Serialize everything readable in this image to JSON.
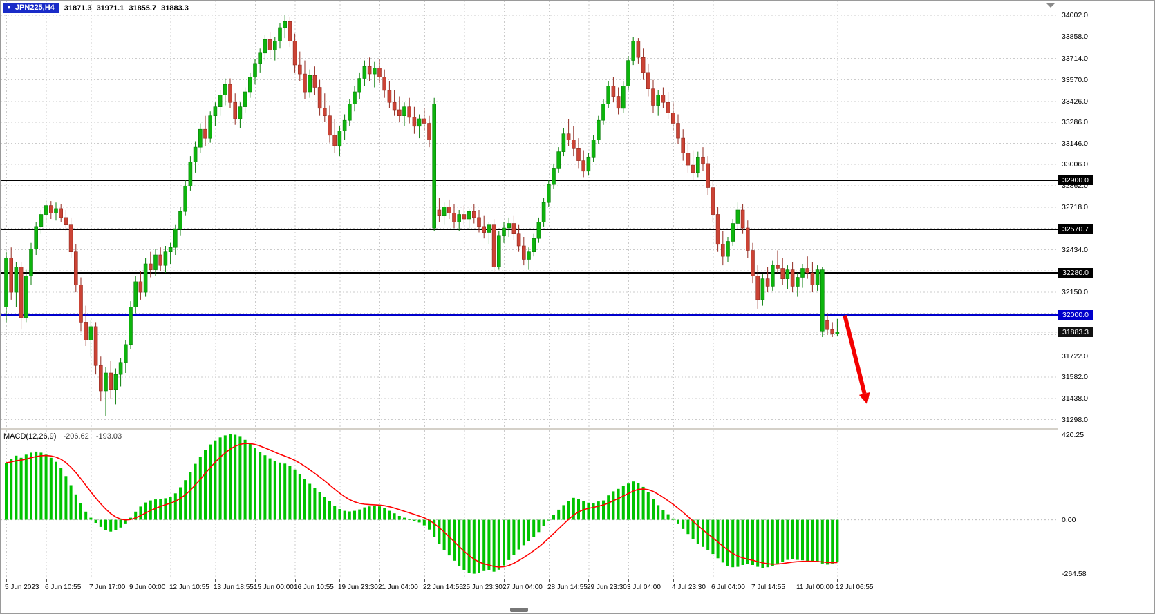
{
  "header": {
    "symbol": "JPN225,H4",
    "open": "31871.3",
    "high": "31971.1",
    "low": "31855.7",
    "close": "31883.3",
    "badge_bg": "#1a2cc8"
  },
  "chart_data": {
    "type": "candlestick",
    "symbol": "JPN225",
    "timeframe": "H4",
    "price_range": [
      31245,
      34100
    ],
    "colors": {
      "bull": "#0db40d",
      "bull_edge": "#087d08",
      "bear": "#cb4335",
      "bear_edge": "#922b21",
      "grid": "#cbcbcb",
      "background": "#ffffff",
      "arrow": "#f30000"
    },
    "bars_ohlc": [
      [
        32050,
        32420,
        31950,
        32380
      ],
      [
        32380,
        32450,
        32100,
        32150
      ],
      [
        32150,
        32350,
        32050,
        32320
      ],
      [
        32320,
        32350,
        31900,
        31980
      ],
      [
        31980,
        32300,
        31950,
        32260
      ],
      [
        32260,
        32480,
        32200,
        32440
      ],
      [
        32440,
        32620,
        32400,
        32590
      ],
      [
        32590,
        32700,
        32540,
        32670
      ],
      [
        32670,
        32770,
        32620,
        32730
      ],
      [
        32730,
        32760,
        32640,
        32680
      ],
      [
        32680,
        32750,
        32630,
        32710
      ],
      [
        32710,
        32740,
        32620,
        32650
      ],
      [
        32650,
        32700,
        32560,
        32600
      ],
      [
        32600,
        32650,
        32380,
        32420
      ],
      [
        32420,
        32470,
        32150,
        32200
      ],
      [
        32200,
        32250,
        31890,
        31950
      ],
      [
        31950,
        32060,
        31790,
        31830
      ],
      [
        31830,
        31960,
        31720,
        31920
      ],
      [
        31920,
        31950,
        31600,
        31660
      ],
      [
        31660,
        31720,
        31420,
        31490
      ],
      [
        31490,
        31650,
        31320,
        31610
      ],
      [
        31610,
        31690,
        31440,
        31500
      ],
      [
        31500,
        31640,
        31400,
        31600
      ],
      [
        31600,
        31710,
        31520,
        31680
      ],
      [
        31680,
        31830,
        31610,
        31800
      ],
      [
        31800,
        32090,
        31770,
        32050
      ],
      [
        32050,
        32260,
        32010,
        32220
      ],
      [
        32220,
        32290,
        32100,
        32150
      ],
      [
        32150,
        32380,
        32120,
        32340
      ],
      [
        32340,
        32420,
        32250,
        32300
      ],
      [
        32300,
        32440,
        32260,
        32400
      ],
      [
        32400,
        32450,
        32290,
        32330
      ],
      [
        32330,
        32460,
        32280,
        32420
      ],
      [
        32420,
        32480,
        32340,
        32450
      ],
      [
        32450,
        32600,
        32400,
        32570
      ],
      [
        32570,
        32720,
        32530,
        32690
      ],
      [
        32690,
        32900,
        32660,
        32860
      ],
      [
        32860,
        33060,
        32830,
        33020
      ],
      [
        33020,
        33160,
        32950,
        33120
      ],
      [
        33120,
        33280,
        33080,
        33240
      ],
      [
        33240,
        33330,
        33130,
        33180
      ],
      [
        33180,
        33360,
        33150,
        33330
      ],
      [
        33330,
        33420,
        33260,
        33390
      ],
      [
        33390,
        33500,
        33330,
        33470
      ],
      [
        33470,
        33580,
        33400,
        33540
      ],
      [
        33540,
        33580,
        33380,
        33420
      ],
      [
        33420,
        33480,
        33270,
        33310
      ],
      [
        33310,
        33420,
        33250,
        33390
      ],
      [
        33390,
        33520,
        33350,
        33490
      ],
      [
        33490,
        33620,
        33450,
        33590
      ],
      [
        33590,
        33710,
        33540,
        33680
      ],
      [
        33680,
        33780,
        33620,
        33750
      ],
      [
        33750,
        33870,
        33700,
        33840
      ],
      [
        33840,
        33890,
        33720,
        33770
      ],
      [
        33770,
        33860,
        33700,
        33830
      ],
      [
        33830,
        33950,
        33780,
        33920
      ],
      [
        33920,
        34002,
        33850,
        33960
      ],
      [
        33960,
        33990,
        33790,
        33830
      ],
      [
        33830,
        33880,
        33620,
        33670
      ],
      [
        33670,
        33760,
        33560,
        33610
      ],
      [
        33610,
        33700,
        33440,
        33490
      ],
      [
        33490,
        33640,
        33450,
        33600
      ],
      [
        33600,
        33660,
        33470,
        33520
      ],
      [
        33520,
        33570,
        33330,
        33380
      ],
      [
        33380,
        33480,
        33290,
        33330
      ],
      [
        33330,
        33400,
        33150,
        33200
      ],
      [
        33200,
        33310,
        33080,
        33130
      ],
      [
        33130,
        33260,
        33060,
        33230
      ],
      [
        33230,
        33340,
        33170,
        33300
      ],
      [
        33300,
        33440,
        33260,
        33410
      ],
      [
        33410,
        33530,
        33360,
        33490
      ],
      [
        33490,
        33620,
        33440,
        33580
      ],
      [
        33580,
        33700,
        33530,
        33660
      ],
      [
        33660,
        33720,
        33560,
        33610
      ],
      [
        33610,
        33690,
        33520,
        33650
      ],
      [
        33650,
        33710,
        33550,
        33590
      ],
      [
        33590,
        33640,
        33450,
        33500
      ],
      [
        33500,
        33560,
        33380,
        33420
      ],
      [
        33420,
        33500,
        33330,
        33370
      ],
      [
        33370,
        33460,
        33290,
        33330
      ],
      [
        33330,
        33420,
        33260,
        33390
      ],
      [
        33390,
        33450,
        33280,
        33320
      ],
      [
        33320,
        33390,
        33210,
        33260
      ],
      [
        33260,
        33340,
        33180,
        33310
      ],
      [
        33310,
        33380,
        33230,
        33280
      ],
      [
        33280,
        33330,
        33120,
        33170
      ],
      [
        32580,
        33450,
        32560,
        33410
      ],
      [
        32700,
        32780,
        32620,
        32660
      ],
      [
        32660,
        32750,
        32600,
        32720
      ],
      [
        32720,
        32770,
        32640,
        32680
      ],
      [
        32680,
        32740,
        32580,
        32620
      ],
      [
        32620,
        32700,
        32560,
        32670
      ],
      [
        32670,
        32730,
        32600,
        32640
      ],
      [
        32640,
        32710,
        32570,
        32690
      ],
      [
        32690,
        32740,
        32610,
        32650
      ],
      [
        32650,
        32700,
        32550,
        32590
      ],
      [
        32590,
        32660,
        32510,
        32550
      ],
      [
        32550,
        32620,
        32470,
        32600
      ],
      [
        32600,
        32640,
        32280,
        32320
      ],
      [
        32320,
        32560,
        32300,
        32530
      ],
      [
        32530,
        32620,
        32480,
        32580
      ],
      [
        32580,
        32650,
        32520,
        32610
      ],
      [
        32610,
        32660,
        32500,
        32540
      ],
      [
        32540,
        32600,
        32420,
        32460
      ],
      [
        32460,
        32520,
        32330,
        32370
      ],
      [
        32370,
        32450,
        32300,
        32420
      ],
      [
        32420,
        32540,
        32390,
        32510
      ],
      [
        32510,
        32650,
        32480,
        32620
      ],
      [
        32620,
        32780,
        32590,
        32750
      ],
      [
        32750,
        32900,
        32720,
        32870
      ],
      [
        32870,
        33010,
        32840,
        32980
      ],
      [
        32980,
        33120,
        32950,
        33090
      ],
      [
        33090,
        33250,
        33060,
        33210
      ],
      [
        33210,
        33310,
        33130,
        33170
      ],
      [
        33170,
        33260,
        33060,
        33110
      ],
      [
        33110,
        33180,
        32980,
        33030
      ],
      [
        33030,
        33100,
        32920,
        32960
      ],
      [
        32960,
        33080,
        32930,
        33050
      ],
      [
        33050,
        33200,
        33020,
        33170
      ],
      [
        33170,
        33330,
        33140,
        33300
      ],
      [
        33300,
        33440,
        33270,
        33410
      ],
      [
        33410,
        33560,
        33380,
        33530
      ],
      [
        33530,
        33590,
        33420,
        33460
      ],
      [
        33460,
        33520,
        33340,
        33380
      ],
      [
        33380,
        33560,
        33350,
        33530
      ],
      [
        33530,
        33730,
        33500,
        33700
      ],
      [
        33700,
        33860,
        33670,
        33830
      ],
      [
        33830,
        33850,
        33680,
        33720
      ],
      [
        33720,
        33780,
        33570,
        33620
      ],
      [
        33620,
        33680,
        33460,
        33510
      ],
      [
        33510,
        33570,
        33350,
        33400
      ],
      [
        33400,
        33500,
        33330,
        33470
      ],
      [
        33470,
        33520,
        33380,
        33420
      ],
      [
        33420,
        33490,
        33310,
        33350
      ],
      [
        33350,
        33420,
        33230,
        33280
      ],
      [
        33280,
        33340,
        33140,
        33180
      ],
      [
        33180,
        33240,
        33030,
        33080
      ],
      [
        33080,
        33160,
        32950,
        33000
      ],
      [
        33000,
        33100,
        32900,
        32950
      ],
      [
        32950,
        33090,
        32920,
        33050
      ],
      [
        33050,
        33120,
        32960,
        33010
      ],
      [
        33010,
        33060,
        32800,
        32850
      ],
      [
        32850,
        32900,
        32620,
        32670
      ],
      [
        32670,
        32720,
        32420,
        32470
      ],
      [
        32470,
        32560,
        32330,
        32390
      ],
      [
        32390,
        32520,
        32350,
        32490
      ],
      [
        32490,
        32640,
        32460,
        32610
      ],
      [
        32610,
        32750,
        32580,
        32700
      ],
      [
        32700,
        32740,
        32540,
        32580
      ],
      [
        32580,
        32630,
        32380,
        32430
      ],
      [
        32430,
        32480,
        32210,
        32260
      ],
      [
        32260,
        32330,
        32040,
        32100
      ],
      [
        32100,
        32270,
        32060,
        32240
      ],
      [
        32240,
        32320,
        32150,
        32190
      ],
      [
        32190,
        32360,
        32160,
        32330
      ],
      [
        32330,
        32430,
        32280,
        32310
      ],
      [
        32310,
        32380,
        32200,
        32240
      ],
      [
        32240,
        32330,
        32170,
        32300
      ],
      [
        32300,
        32350,
        32150,
        32190
      ],
      [
        32190,
        32280,
        32120,
        32250
      ],
      [
        32250,
        32340,
        32180,
        32310
      ],
      [
        32310,
        32390,
        32240,
        32280
      ],
      [
        32280,
        32350,
        32150,
        32200
      ],
      [
        32200,
        32330,
        32160,
        32300
      ],
      [
        31890,
        32320,
        31850,
        32300
      ],
      [
        31960,
        32010,
        31865,
        31900
      ],
      [
        31900,
        31950,
        31850,
        31875
      ],
      [
        31871,
        31971,
        31856,
        31883
      ]
    ],
    "time_labels": [
      "5 Jun 2023",
      "6 Jun 10:55",
      "7 Jun 17:00",
      "9 Jun 00:00",
      "12 Jun 10:55",
      "13 Jun 18:55",
      "15 Jun 00:00",
      "16 Jun 10:55",
      "19 Jun 23:30",
      "21 Jun 04:00",
      "22 Jun 14:55",
      "25 Jun 23:30",
      "27 Jun 04:00",
      "28 Jun 14:55",
      "29 Jun 23:30",
      "3 Jul 04:00",
      "4 Jul 23:30",
      "6 Jul 04:00",
      "7 Jul 14:55",
      "11 Jul 00:00",
      "12 Jul 06:55"
    ],
    "price_axis": {
      "tick_labels": [
        {
          "p": 34002,
          "t": "34002.0"
        },
        {
          "p": 33858,
          "t": "33858.0"
        },
        {
          "p": 33714,
          "t": "33714.0"
        },
        {
          "p": 33570,
          "t": "33570.0"
        },
        {
          "p": 33426,
          "t": "33426.0"
        },
        {
          "p": 33286,
          "t": "33286.0"
        },
        {
          "p": 33146,
          "t": "33146.0"
        },
        {
          "p": 33006,
          "t": "33006.0"
        },
        {
          "p": 32862,
          "t": "32862.0"
        },
        {
          "p": 32718,
          "t": "32718.0"
        },
        {
          "p": 32434,
          "t": "32434.0"
        },
        {
          "p": 32150,
          "t": "32150.0"
        },
        {
          "p": 31722,
          "t": "31722.0"
        },
        {
          "p": 31582,
          "t": "31582.0"
        },
        {
          "p": 31438,
          "t": "31438.0"
        },
        {
          "p": 31298,
          "t": "31298.0"
        }
      ],
      "grid_prices": [
        34002,
        33858,
        33714,
        33570,
        33426,
        33286,
        33146,
        33006,
        32862,
        32718,
        32578,
        32434,
        32294,
        32150,
        32010,
        31866,
        31722,
        31582,
        31438,
        31298
      ]
    },
    "levels": [
      {
        "price": 32900.0,
        "label": "32900.0",
        "color": "#000000",
        "width": 2,
        "badge_bg": "#000000"
      },
      {
        "price": 32570.7,
        "label": "32570.7",
        "color": "#000000",
        "width": 2,
        "badge_bg": "#000000"
      },
      {
        "price": 32280.0,
        "label": "32280.0",
        "color": "#000000",
        "width": 2,
        "badge_bg": "#000000"
      },
      {
        "price": 32000.0,
        "label": "32000.0",
        "color": "#0000cc",
        "width": 3,
        "badge_bg": "#0000cc"
      }
    ],
    "bid_line": {
      "price": 31883.3,
      "label": "31883.3",
      "color": "#a0a0a0",
      "badge_bg": "#111111"
    },
    "indicator": {
      "type": "macd_histogram",
      "label": "MACD(12,26,9)",
      "main_value": "-206.62",
      "signal_value": "-193.03",
      "range": [
        -290,
        440
      ],
      "axis_labels": [
        {
          "value": 420.25,
          "text": "420.25"
        },
        {
          "value": 0,
          "text": "0.00"
        },
        {
          "value": -264.58,
          "text": "-264.58"
        }
      ],
      "signal_ema_period": 9,
      "colors": {
        "histogram": "#00c300",
        "signal": "#ff0000",
        "zero_line": "#bdbdbd"
      },
      "histogram": [
        280,
        300,
        315,
        305,
        320,
        330,
        335,
        330,
        320,
        305,
        285,
        255,
        215,
        170,
        125,
        80,
        40,
        10,
        -15,
        -35,
        -52,
        -58,
        -52,
        -38,
        -18,
        10,
        40,
        65,
        85,
        95,
        100,
        103,
        106,
        112,
        130,
        160,
        195,
        235,
        275,
        310,
        345,
        370,
        390,
        405,
        415,
        420,
        418,
        408,
        393,
        374,
        352,
        332,
        317,
        302,
        289,
        281,
        276,
        266,
        247,
        225,
        200,
        177,
        158,
        137,
        114,
        91,
        70,
        53,
        44,
        41,
        44,
        51,
        61,
        66,
        70,
        66,
        57,
        44,
        32,
        19,
        10,
        3,
        -5,
        -13,
        -27,
        -48,
        -85,
        -117,
        -148,
        -175,
        -201,
        -228,
        -249,
        -260,
        -265,
        -262,
        -252,
        -248,
        -255,
        -245,
        -224,
        -198,
        -172,
        -146,
        -125,
        -105,
        -85,
        -60,
        -30,
        0,
        25,
        50,
        72,
        92,
        108,
        102,
        92,
        84,
        80,
        90,
        95,
        120,
        140,
        152,
        165,
        178,
        188,
        182,
        162,
        135,
        103,
        72,
        48,
        27,
        6,
        -18,
        -45,
        -70,
        -95,
        -118,
        -133,
        -148,
        -168,
        -189,
        -210,
        -226,
        -233,
        -231,
        -222,
        -218,
        -222,
        -231,
        -236,
        -233,
        -226,
        -215,
        -205,
        -197,
        -194,
        -197,
        -199,
        -202,
        -205,
        -208,
        -215,
        -220,
        -215,
        -206.62
      ]
    },
    "annotations": [
      {
        "type": "arrow",
        "color": "#f30000",
        "from": {
          "bar": 168.5,
          "price": 31995
        },
        "to": {
          "bar": 173.0,
          "price": 31400
        }
      }
    ]
  }
}
